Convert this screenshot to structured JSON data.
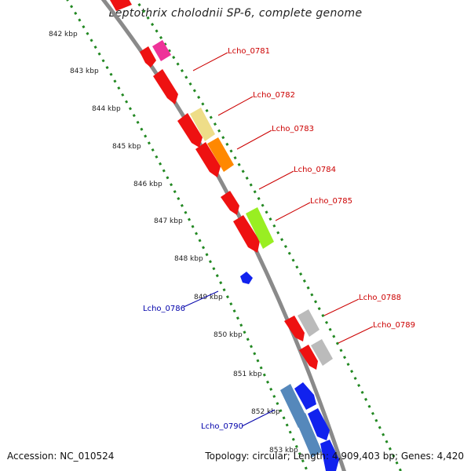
{
  "title": "Leptothrix cholodnii SP-6, complete genome",
  "footer": {
    "accession": "Accession: NC_010524",
    "topology": "Topology: circular; Length: 4,909,403 bp; Genes: 4,420"
  },
  "colors": {
    "backbone": "#888888",
    "forward_label": "#cc0000",
    "reverse_label": "#0000aa",
    "ticks": "#228822"
  },
  "ticks": [
    {
      "label": "842 kbp",
      "t": 0.05
    },
    {
      "label": "843 kbp",
      "t": 0.118
    },
    {
      "label": "844 kbp",
      "t": 0.186
    },
    {
      "label": "845 kbp",
      "t": 0.254
    },
    {
      "label": "846 kbp",
      "t": 0.322
    },
    {
      "label": "847 kbp",
      "t": 0.39
    },
    {
      "label": "848 kbp",
      "t": 0.458
    },
    {
      "label": "849 kbp",
      "t": 0.526
    },
    {
      "label": "850 kbp",
      "t": 0.594
    },
    {
      "label": "851 kbp",
      "t": 0.662
    },
    {
      "label": "852 kbp",
      "t": 0.73
    },
    {
      "label": "853 kbp",
      "t": 0.798
    }
  ],
  "labels": [
    {
      "text": "Lcho_0781",
      "strand": "forward"
    },
    {
      "text": "Lcho_0782",
      "strand": "forward"
    },
    {
      "text": "Lcho_0783",
      "strand": "forward"
    },
    {
      "text": "Lcho_0784",
      "strand": "forward"
    },
    {
      "text": "Lcho_0785",
      "strand": "forward"
    },
    {
      "text": "Lcho_0788",
      "strand": "forward"
    },
    {
      "text": "Lcho_0789",
      "strand": "forward"
    },
    {
      "text": "Lcho_0786",
      "strand": "reverse"
    },
    {
      "text": "Lcho_0790",
      "strand": "reverse"
    }
  ]
}
